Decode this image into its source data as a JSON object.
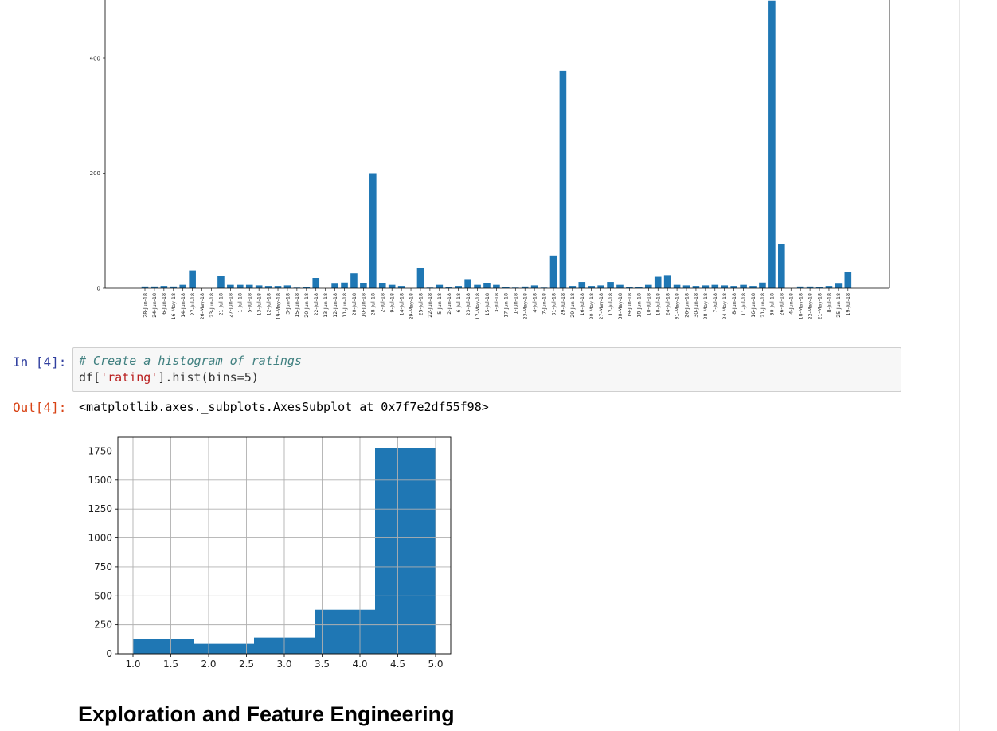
{
  "notebook": {
    "cell4": {
      "input_prompt": "In [4]:",
      "output_prompt": "Out[4]:",
      "code_comment": "# Create a histogram of ratings",
      "code_pre": "df[",
      "code_string": "'rating'",
      "code_post": "].hist(bins=5)",
      "output_repr": "<matplotlib.axes._subplots.AxesSubplot at 0x7f7e2df55f98>"
    },
    "heading": "Exploration and Feature Engineering"
  },
  "colors": {
    "bar": "#1f77b4",
    "prompt_in": "#303f9f",
    "prompt_out": "#d84315",
    "comment": "#408080",
    "string": "#ba2121",
    "grid": "#b0b0b0"
  },
  "chart_data": [
    {
      "type": "bar",
      "ylim": [
        0,
        500
      ],
      "yticks": [
        0,
        200,
        400
      ],
      "grid": false,
      "categories": [
        "28-Jun-18",
        "24-Jun-18",
        "6-Jun-18",
        "16-May-18",
        "14-Jun-18",
        "27-Jul-18",
        "26-May-18",
        "23-Jun-18",
        "21-Jul-18",
        "27-Jun-18",
        "1-Jul-18",
        "5-Jul-18",
        "13-Jul-18",
        "12-Jul-18",
        "19-May-18",
        "3-Jun-18",
        "15-Jun-18",
        "20-Jun-18",
        "22-Jul-18",
        "13-Jun-18",
        "12-Jun-18",
        "11-Jun-18",
        "20-Jul-18",
        "10-Jun-18",
        "28-Jul-18",
        "2-Jul-18",
        "9-Jul-18",
        "14-Jul-18",
        "29-May-18",
        "25-Jul-18",
        "22-Jun-18",
        "5-Jun-18",
        "2-Jun-18",
        "6-Jul-18",
        "23-Jul-18",
        "17-May-18",
        "15-Jul-18",
        "3-Jul-18",
        "17-Jun-18",
        "1-Jun-18",
        "23-May-18",
        "4-Jul-18",
        "7-Jun-18",
        "31-Jul-18",
        "29-Jul-18",
        "29-Jun-18",
        "16-Jul-18",
        "20-May-18",
        "27-May-18",
        "17-Jul-18",
        "30-May-18",
        "19-Jun-18",
        "18-Jun-18",
        "10-Jul-18",
        "18-Jul-18",
        "24-Jul-18",
        "31-May-18",
        "26-Jun-18",
        "30-Jun-18",
        "28-May-18",
        "7-Jul-18",
        "24-May-18",
        "8-Jun-18",
        "11-Jul-18",
        "16-Jun-18",
        "21-Jun-18",
        "30-Jul-18",
        "26-Jul-18",
        "4-Jun-18",
        "18-May-18",
        "22-May-18",
        "21-May-18",
        "8-Jul-18",
        "25-Jun-18",
        "19-Jul-18"
      ],
      "values": [
        3,
        3,
        4,
        3,
        6,
        31,
        0,
        0,
        21,
        6,
        6,
        6,
        5,
        4,
        4,
        5,
        1,
        2,
        18,
        0,
        8,
        10,
        26,
        9,
        200,
        9,
        6,
        4,
        0,
        36,
        1,
        6,
        2,
        4,
        16,
        6,
        9,
        6,
        2,
        1,
        3,
        5,
        1,
        57,
        378,
        4,
        11,
        4,
        5,
        11,
        6,
        2,
        2,
        6,
        20,
        23,
        6,
        5,
        4,
        5,
        6,
        5,
        4,
        6,
        4,
        10,
        500,
        77,
        0,
        3,
        3,
        2,
        4,
        8,
        29
      ]
    },
    {
      "type": "bar",
      "subtype": "histogram",
      "bin_edges": [
        1.0,
        1.8,
        2.6,
        3.4,
        4.2,
        5.0
      ],
      "values": [
        130,
        85,
        140,
        380,
        1775
      ],
      "xticks": [
        "1.0",
        "1.5",
        "2.0",
        "2.5",
        "3.0",
        "3.5",
        "4.0",
        "4.5",
        "5.0"
      ],
      "yticks": [
        "0",
        "250",
        "500",
        "750",
        "1000",
        "1250",
        "1500",
        "1750"
      ],
      "xlim": [
        0.8,
        5.2
      ],
      "ylim": [
        0,
        1870
      ],
      "grid": true
    }
  ]
}
